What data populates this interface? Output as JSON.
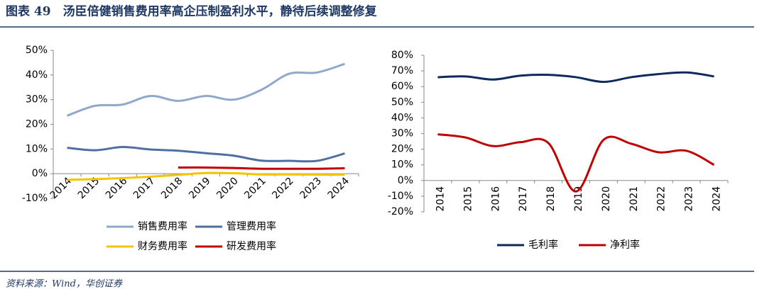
{
  "title": "图表 49　汤臣倍健销售费用率高企压制盈利水平，静待后续调整修复",
  "source": "资料来源：Wind，华创证券",
  "chart_data": [
    {
      "type": "line",
      "smooth": true,
      "legend": "bottom",
      "categories": [
        "2014",
        "2015",
        "2016",
        "2017",
        "2018",
        "2019",
        "2020",
        "2021",
        "2022",
        "2023",
        "2024"
      ],
      "ylim": [
        -10,
        50
      ],
      "yticks": [
        {
          "value": -10,
          "label": "-10%"
        },
        {
          "value": 0,
          "label": "0%"
        },
        {
          "value": 10,
          "label": "10%"
        },
        {
          "value": 20,
          "label": "20%"
        },
        {
          "value": 30,
          "label": "30%"
        },
        {
          "value": 40,
          "label": "40%"
        },
        {
          "value": 50,
          "label": "50%"
        }
      ],
      "series": [
        {
          "name": "销售费用率",
          "color": "#8fa8cc",
          "values": [
            23.5,
            27.5,
            28,
            31.5,
            29.5,
            31.5,
            30,
            34,
            40.5,
            41,
            44.5
          ]
        },
        {
          "name": "管理费用率",
          "color": "#4f6fa3",
          "values": [
            10.5,
            9.5,
            10.8,
            9.8,
            9.3,
            8.3,
            7.3,
            5.3,
            5.2,
            5.2,
            8.2
          ]
        },
        {
          "name": "财务费用率",
          "color": "#f5c300",
          "values": [
            -2.5,
            -2.2,
            -1.8,
            -1.2,
            -0.5,
            0.3,
            0.2,
            -0.3,
            -0.3,
            -0.4,
            -0.4
          ]
        },
        {
          "name": "研发费用率",
          "color": "#c00000",
          "values": [
            null,
            null,
            null,
            null,
            2.5,
            2.5,
            2.3,
            2.0,
            2.0,
            2.0,
            2.2
          ]
        }
      ]
    },
    {
      "type": "line",
      "smooth": true,
      "legend": "bottom",
      "categories": [
        "2014",
        "2015",
        "2016",
        "2017",
        "2018",
        "2019",
        "2020",
        "2021",
        "2022",
        "2023",
        "2024"
      ],
      "ylim": [
        -20,
        80
      ],
      "yticks": [
        {
          "value": -20,
          "label": "-20%"
        },
        {
          "value": -10,
          "label": "-10%"
        },
        {
          "value": 0,
          "label": "0%"
        },
        {
          "value": 10,
          "label": "10%"
        },
        {
          "value": 20,
          "label": "20%"
        },
        {
          "value": 30,
          "label": "30%"
        },
        {
          "value": 40,
          "label": "40%"
        },
        {
          "value": 50,
          "label": "50%"
        },
        {
          "value": 60,
          "label": "60%"
        },
        {
          "value": 70,
          "label": "70%"
        },
        {
          "value": 80,
          "label": "80%"
        }
      ],
      "series": [
        {
          "name": "毛利率",
          "color": "#0e2a5c",
          "values": [
            66,
            66.5,
            64.5,
            67,
            67.5,
            66,
            63,
            66,
            68,
            69,
            66.5
          ]
        },
        {
          "name": "净利率",
          "color": "#c00000",
          "values": [
            29.5,
            27.5,
            22,
            24.5,
            24,
            -7,
            26,
            23.5,
            18,
            19,
            10
          ]
        }
      ]
    }
  ]
}
